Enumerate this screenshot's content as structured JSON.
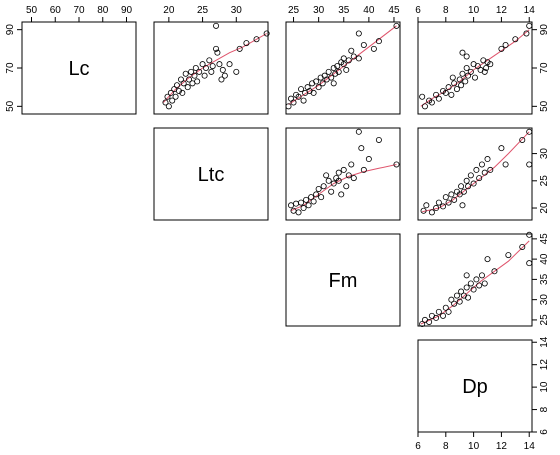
{
  "chart_data": {
    "type": "scatter",
    "title": "",
    "layout": "upper-triangular pairs matrix",
    "grid": false,
    "variables": [
      {
        "name": "Lc",
        "range": [
          46,
          94
        ],
        "ticks": [
          50,
          70,
          90
        ],
        "tick_labels_outer": [
          50,
          60,
          70,
          80,
          90
        ]
      },
      {
        "name": "Ltc",
        "range": [
          17.8,
          34.7
        ],
        "ticks": [
          20,
          25,
          30
        ]
      },
      {
        "name": "Fm",
        "range": [
          23.5,
          46.2
        ],
        "ticks": [
          25,
          30,
          35,
          40,
          45
        ]
      },
      {
        "name": "Dp",
        "range": [
          6.0,
          14.2
        ],
        "ticks": [
          6,
          8,
          10,
          12,
          14
        ]
      }
    ],
    "colors": {
      "points": "#000000",
      "smoother": "#DF536B",
      "frame": "#000000"
    },
    "panels": [
      {
        "x": "Ltc",
        "y": "Lc",
        "smoother": [
          [
            19.2,
            52
          ],
          [
            21,
            59
          ],
          [
            23,
            65
          ],
          [
            25,
            70
          ],
          [
            27,
            74
          ],
          [
            29,
            78
          ],
          [
            31,
            81
          ],
          [
            33,
            85
          ],
          [
            34.5,
            88
          ]
        ],
        "points": [
          [
            19.5,
            52
          ],
          [
            19.8,
            55
          ],
          [
            20,
            50
          ],
          [
            20.3,
            57
          ],
          [
            20.5,
            53
          ],
          [
            20.8,
            59
          ],
          [
            21,
            55
          ],
          [
            21.2,
            61
          ],
          [
            21.5,
            58
          ],
          [
            21.8,
            64
          ],
          [
            22,
            57
          ],
          [
            22.2,
            62
          ],
          [
            22.5,
            67
          ],
          [
            22.8,
            60
          ],
          [
            23,
            64
          ],
          [
            23.3,
            68
          ],
          [
            23.5,
            62
          ],
          [
            23.8,
            66
          ],
          [
            24,
            70
          ],
          [
            24.2,
            63
          ],
          [
            24.5,
            68
          ],
          [
            25,
            72
          ],
          [
            25.3,
            66
          ],
          [
            25.5,
            70
          ],
          [
            26,
            74
          ],
          [
            26.3,
            68
          ],
          [
            26.5,
            71
          ],
          [
            27,
            80
          ],
          [
            27.2,
            78
          ],
          [
            27.5,
            72
          ],
          [
            27.8,
            64
          ],
          [
            28,
            69
          ],
          [
            28.3,
            66
          ],
          [
            29,
            72
          ],
          [
            30,
            68
          ],
          [
            30.5,
            80
          ],
          [
            31.5,
            83
          ],
          [
            33,
            85
          ],
          [
            34.5,
            88
          ],
          [
            27,
            92
          ]
        ]
      },
      {
        "x": "Fm",
        "y": "Lc",
        "smoother": [
          [
            24,
            51
          ],
          [
            27,
            56
          ],
          [
            30,
            61
          ],
          [
            33,
            67
          ],
          [
            36,
            73
          ],
          [
            39,
            79
          ],
          [
            42,
            85
          ],
          [
            45.5,
            92
          ]
        ],
        "points": [
          [
            24,
            50
          ],
          [
            24.5,
            54
          ],
          [
            25,
            52
          ],
          [
            25.5,
            56
          ],
          [
            26,
            55
          ],
          [
            26.5,
            59
          ],
          [
            27,
            53
          ],
          [
            27.3,
            57
          ],
          [
            27.8,
            60
          ],
          [
            28.2,
            58
          ],
          [
            28.7,
            62
          ],
          [
            29,
            57
          ],
          [
            29.5,
            63
          ],
          [
            30,
            60
          ],
          [
            30.4,
            65
          ],
          [
            30.8,
            62
          ],
          [
            31.2,
            66
          ],
          [
            31.6,
            64
          ],
          [
            32,
            68
          ],
          [
            32.5,
            65
          ],
          [
            33,
            70
          ],
          [
            33.3,
            67
          ],
          [
            33.7,
            71
          ],
          [
            34,
            68
          ],
          [
            34.5,
            73
          ],
          [
            35,
            72
          ],
          [
            35.5,
            69
          ],
          [
            36,
            74
          ],
          [
            36.5,
            79
          ],
          [
            37,
            76
          ],
          [
            38,
            88
          ],
          [
            39,
            82
          ],
          [
            41,
            80
          ],
          [
            42,
            84
          ],
          [
            45.5,
            92
          ],
          [
            33,
            62
          ],
          [
            35,
            75
          ],
          [
            38,
            75
          ]
        ]
      },
      {
        "x": "Dp",
        "y": "Lc",
        "smoother": [
          [
            6.2,
            50
          ],
          [
            7,
            54
          ],
          [
            8,
            58
          ],
          [
            9,
            63
          ],
          [
            10,
            69
          ],
          [
            11,
            74
          ],
          [
            12,
            79
          ],
          [
            13,
            84
          ],
          [
            14,
            90
          ]
        ],
        "points": [
          [
            6.3,
            55
          ],
          [
            6.5,
            50
          ],
          [
            6.8,
            53
          ],
          [
            7,
            52
          ],
          [
            7.3,
            56
          ],
          [
            7.5,
            54
          ],
          [
            7.8,
            58
          ],
          [
            8,
            57
          ],
          [
            8.2,
            60
          ],
          [
            8.4,
            56
          ],
          [
            8.6,
            62
          ],
          [
            8.8,
            59
          ],
          [
            9,
            64
          ],
          [
            9.1,
            61
          ],
          [
            9.2,
            67
          ],
          [
            9.4,
            63
          ],
          [
            9.5,
            70
          ],
          [
            9.6,
            66
          ],
          [
            9.8,
            68
          ],
          [
            10,
            72
          ],
          [
            10.1,
            65
          ],
          [
            10.3,
            71
          ],
          [
            10.5,
            69
          ],
          [
            10.7,
            74
          ],
          [
            10.9,
            70
          ],
          [
            11,
            73
          ],
          [
            11.2,
            72
          ],
          [
            9.2,
            78
          ],
          [
            9.5,
            76
          ],
          [
            12,
            80
          ],
          [
            12.3,
            82
          ],
          [
            13,
            85
          ],
          [
            13.8,
            88
          ],
          [
            14,
            92
          ],
          [
            8.5,
            65
          ],
          [
            10.8,
            68
          ]
        ]
      },
      {
        "x": "Fm",
        "y": "Ltc",
        "smoother": [
          [
            24.5,
            19.5
          ],
          [
            27,
            20.5
          ],
          [
            30,
            22.5
          ],
          [
            33,
            24.5
          ],
          [
            36,
            25.8
          ],
          [
            39,
            26.7
          ],
          [
            42,
            27.3
          ],
          [
            45.5,
            28
          ]
        ],
        "points": [
          [
            24.5,
            20.5
          ],
          [
            25,
            19.5
          ],
          [
            25.5,
            20.8
          ],
          [
            26,
            19.2
          ],
          [
            26.5,
            21
          ],
          [
            27,
            20
          ],
          [
            27.5,
            21.5
          ],
          [
            28,
            20.5
          ],
          [
            28.5,
            22
          ],
          [
            29,
            21.2
          ],
          [
            29.5,
            22.5
          ],
          [
            30,
            23.5
          ],
          [
            30.5,
            22
          ],
          [
            31,
            24
          ],
          [
            31.5,
            26
          ],
          [
            32,
            25
          ],
          [
            32.5,
            23
          ],
          [
            33,
            24.5
          ],
          [
            33.5,
            25.5
          ],
          [
            34,
            26.5
          ],
          [
            34.5,
            22.5
          ],
          [
            35,
            27
          ],
          [
            35.5,
            24
          ],
          [
            36,
            26
          ],
          [
            36.5,
            28
          ],
          [
            37,
            25.5
          ],
          [
            38,
            34
          ],
          [
            38.5,
            31
          ],
          [
            39,
            27
          ],
          [
            40,
            29
          ],
          [
            42,
            32.5
          ],
          [
            45.5,
            28
          ],
          [
            34,
            25
          ]
        ]
      },
      {
        "x": "Dp",
        "y": "Ltc",
        "smoother": [
          [
            6.3,
            19.3
          ],
          [
            7.5,
            20
          ],
          [
            8.5,
            21.5
          ],
          [
            9.5,
            23.5
          ],
          [
            10.5,
            25.5
          ],
          [
            11.5,
            27.5
          ],
          [
            12.5,
            30
          ],
          [
            14,
            34
          ]
        ],
        "points": [
          [
            6.4,
            19.5
          ],
          [
            6.6,
            20.5
          ],
          [
            7,
            19.2
          ],
          [
            7.3,
            20
          ],
          [
            7.5,
            21
          ],
          [
            7.8,
            20.3
          ],
          [
            8,
            22
          ],
          [
            8.2,
            21
          ],
          [
            8.4,
            22.5
          ],
          [
            8.6,
            21.5
          ],
          [
            8.8,
            23
          ],
          [
            9,
            22.5
          ],
          [
            9.1,
            24
          ],
          [
            9.3,
            23
          ],
          [
            9.5,
            25
          ],
          [
            9.6,
            24
          ],
          [
            9.8,
            26
          ],
          [
            10,
            24.5
          ],
          [
            10.2,
            27
          ],
          [
            10.4,
            25.5
          ],
          [
            10.6,
            28
          ],
          [
            10.8,
            26.5
          ],
          [
            11,
            29
          ],
          [
            11.2,
            27
          ],
          [
            12,
            31
          ],
          [
            12.3,
            28
          ],
          [
            13.5,
            32.5
          ],
          [
            14,
            34
          ],
          [
            14,
            28
          ],
          [
            9.2,
            20.5
          ]
        ]
      },
      {
        "x": "Dp",
        "y": "Fm",
        "smoother": [
          [
            6.2,
            24
          ],
          [
            7.5,
            26
          ],
          [
            8.5,
            28.5
          ],
          [
            9.5,
            31.5
          ],
          [
            10.5,
            34.5
          ],
          [
            11.5,
            37
          ],
          [
            12.5,
            39.5
          ],
          [
            14,
            44.5
          ]
        ],
        "points": [
          [
            6.3,
            24
          ],
          [
            6.5,
            25
          ],
          [
            6.8,
            24.5
          ],
          [
            7,
            26
          ],
          [
            7.3,
            25.5
          ],
          [
            7.5,
            27
          ],
          [
            7.8,
            26
          ],
          [
            8,
            28
          ],
          [
            8.2,
            27
          ],
          [
            8.4,
            30
          ],
          [
            8.6,
            29
          ],
          [
            8.8,
            31
          ],
          [
            9,
            29.5
          ],
          [
            9.1,
            32
          ],
          [
            9.3,
            31
          ],
          [
            9.5,
            33
          ],
          [
            9.6,
            30.5
          ],
          [
            9.8,
            34
          ],
          [
            10,
            32.5
          ],
          [
            10.2,
            35
          ],
          [
            10.4,
            33.5
          ],
          [
            10.6,
            36
          ],
          [
            10.8,
            34
          ],
          [
            11,
            40
          ],
          [
            11.5,
            37
          ],
          [
            12.5,
            41
          ],
          [
            13.5,
            43
          ],
          [
            14,
            46
          ],
          [
            14,
            39
          ],
          [
            9.5,
            36
          ]
        ]
      }
    ]
  }
}
